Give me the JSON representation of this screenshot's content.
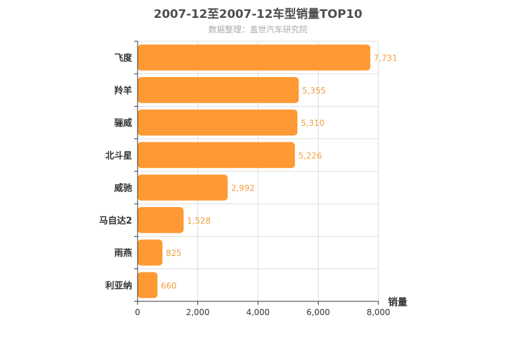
{
  "title": "2007-12至2007-12车型销量TOP10",
  "subtitle": "数据整理：盖世汽车研究院",
  "chart_data": {
    "type": "bar",
    "orientation": "horizontal",
    "categories": [
      "飞度",
      "羚羊",
      "骊威",
      "北斗星",
      "威驰",
      "马自达2",
      "雨燕",
      "利亚纳"
    ],
    "values": [
      7731,
      5355,
      5310,
      5226,
      2992,
      1528,
      825,
      660
    ],
    "value_labels": [
      "7,731",
      "5,355",
      "5,310",
      "5,226",
      "2,992",
      "1,528",
      "825",
      "660"
    ],
    "xlabel": "销量",
    "xlim": [
      0,
      8000
    ],
    "xticks": [
      0,
      2000,
      4000,
      6000,
      8000
    ],
    "xtick_labels": [
      "0",
      "2,000",
      "4,000",
      "6,000",
      "8,000"
    ],
    "grid": true,
    "bar_color": "#ff9933",
    "label_color": "#f0a040"
  }
}
